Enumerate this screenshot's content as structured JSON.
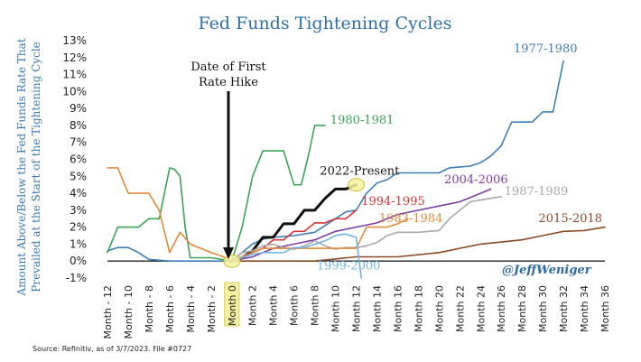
{
  "chart_data": {
    "type": "line",
    "title": "Fed Funds Tightening Cycles",
    "ylabel_lines": [
      "Amount Above/Below the Fed Funds Rate That",
      "Prevailed at the Start of the Tightening Cycle"
    ],
    "xlabel": "",
    "ylim": [
      -1,
      13
    ],
    "xlim": [
      -12,
      36
    ],
    "grid": false,
    "yticks": [
      {
        "value": -1,
        "label": "-1%"
      },
      {
        "value": 0,
        "label": "0%"
      },
      {
        "value": 1,
        "label": "1%"
      },
      {
        "value": 2,
        "label": "2%"
      },
      {
        "value": 3,
        "label": "3%"
      },
      {
        "value": 4,
        "label": "4%"
      },
      {
        "value": 5,
        "label": "5%"
      },
      {
        "value": 6,
        "label": "6%"
      },
      {
        "value": 7,
        "label": "7%"
      },
      {
        "value": 8,
        "label": "8%"
      },
      {
        "value": 9,
        "label": "9%"
      },
      {
        "value": 10,
        "label": "10%"
      },
      {
        "value": 11,
        "label": "11%"
      },
      {
        "value": 12,
        "label": "12%"
      },
      {
        "value": 13,
        "label": "13%"
      }
    ],
    "xticks": [
      {
        "value": -12,
        "label": "Month - 12"
      },
      {
        "value": -10,
        "label": "Month - 10"
      },
      {
        "value": -8,
        "label": "Month - 8"
      },
      {
        "value": -6,
        "label": "Month - 6"
      },
      {
        "value": -4,
        "label": "Month - 4"
      },
      {
        "value": -2,
        "label": "Month - 2"
      },
      {
        "value": 0,
        "label": "Month 0"
      },
      {
        "value": 2,
        "label": "Month 2"
      },
      {
        "value": 4,
        "label": "Month 4"
      },
      {
        "value": 6,
        "label": "Month 6"
      },
      {
        "value": 8,
        "label": "Month 8"
      },
      {
        "value": 10,
        "label": "Month 10"
      },
      {
        "value": 12,
        "label": "Month 12"
      },
      {
        "value": 14,
        "label": "Month 14"
      },
      {
        "value": 16,
        "label": "Month 16"
      },
      {
        "value": 18,
        "label": "Month 18"
      },
      {
        "value": 20,
        "label": "Month 20"
      },
      {
        "value": 22,
        "label": "Month 22"
      },
      {
        "value": 24,
        "label": "Month 24"
      },
      {
        "value": 26,
        "label": "Month 26"
      },
      {
        "value": 28,
        "label": "Month 28"
      },
      {
        "value": 30,
        "label": "Month 30"
      },
      {
        "value": 32,
        "label": "Month 32"
      },
      {
        "value": 34,
        "label": "Month 34"
      },
      {
        "value": 36,
        "label": "Month 36"
      }
    ],
    "highlight_tick": 0,
    "highlight_color": "#f7f2a0",
    "series": [
      {
        "name": "1977-1980",
        "color": "#3f7fb5",
        "width": 1.6,
        "points": [
          [
            -12,
            0.6
          ],
          [
            -11,
            0.8
          ],
          [
            -10,
            0.8
          ],
          [
            -9,
            0.5
          ],
          [
            -8,
            0.1
          ],
          [
            -6,
            0
          ],
          [
            0,
            0
          ],
          [
            1,
            0.5
          ],
          [
            2,
            1
          ],
          [
            3,
            1.3
          ],
          [
            4,
            1.4
          ],
          [
            6,
            1.5
          ],
          [
            8,
            1.7
          ],
          [
            10,
            2.5
          ],
          [
            11,
            2.9
          ],
          [
            12,
            3
          ],
          [
            13,
            4
          ],
          [
            14,
            4.6
          ],
          [
            15,
            4.8
          ],
          [
            16,
            5.2
          ],
          [
            18,
            5.2
          ],
          [
            20,
            5.2
          ],
          [
            21,
            5.5
          ],
          [
            23,
            5.6
          ],
          [
            24,
            5.8
          ],
          [
            25,
            6.2
          ],
          [
            26,
            6.8
          ],
          [
            27,
            8.2
          ],
          [
            28,
            8.2
          ],
          [
            29,
            8.2
          ],
          [
            30,
            8.8
          ],
          [
            31,
            8.8
          ],
          [
            32,
            11.8
          ]
        ],
        "label": "1977-1980",
        "label_color": "#3f7fb5",
        "label_x": 27.2,
        "label_y": 12.3
      },
      {
        "name": "1980-1981",
        "color": "#3aa357",
        "width": 1.6,
        "points": [
          [
            -12,
            0.5
          ],
          [
            -11,
            2
          ],
          [
            -10,
            2
          ],
          [
            -9,
            2
          ],
          [
            -8,
            2.5
          ],
          [
            -7,
            2.5
          ],
          [
            -6,
            5.5
          ],
          [
            -5.5,
            5.4
          ],
          [
            -5,
            5
          ],
          [
            -4.5,
            2
          ],
          [
            -4,
            0.2
          ],
          [
            -2,
            0.2
          ],
          [
            0,
            0
          ],
          [
            1,
            2
          ],
          [
            2,
            5
          ],
          [
            3,
            6.5
          ],
          [
            4,
            6.5
          ],
          [
            5,
            6.5
          ],
          [
            6,
            4.5
          ],
          [
            6.7,
            4.5
          ],
          [
            7.5,
            6.5
          ],
          [
            8,
            8
          ],
          [
            9,
            8
          ]
        ],
        "label": "1980-1981",
        "label_color": "#3aa357",
        "label_x": 9.5,
        "label_y": 8.1
      },
      {
        "name": "2022-Present",
        "color": "#111111",
        "width": 3,
        "points": [
          [
            0,
            0
          ],
          [
            1,
            0.2
          ],
          [
            2,
            0.6
          ],
          [
            3,
            1.4
          ],
          [
            4,
            1.4
          ],
          [
            5,
            2.2
          ],
          [
            6,
            2.2
          ],
          [
            7,
            3
          ],
          [
            8,
            3
          ],
          [
            9,
            3.7
          ],
          [
            10,
            4.25
          ],
          [
            11,
            4.25
          ],
          [
            12,
            4.5
          ]
        ],
        "label": "2022-Present",
        "label_color": "#111111",
        "label_x": 8.5,
        "label_y": 5.1,
        "end_marker": {
          "x": 12,
          "y": 4.5,
          "color": "#f7f2a0"
        }
      },
      {
        "name": "1994-1995",
        "color": "#d43436",
        "width": 1.6,
        "points": [
          [
            0,
            0
          ],
          [
            1,
            0.25
          ],
          [
            2,
            0.5
          ],
          [
            3,
            0.75
          ],
          [
            4,
            1.25
          ],
          [
            5,
            1.25
          ],
          [
            6,
            1.75
          ],
          [
            7,
            1.75
          ],
          [
            8,
            2.25
          ],
          [
            9,
            2.25
          ],
          [
            10,
            2.5
          ],
          [
            11,
            2.5
          ],
          [
            12,
            3
          ]
        ],
        "label": "1994-1995",
        "label_color": "#d43436",
        "label_x": 12.5,
        "label_y": 3.3
      },
      {
        "name": "2004-2006",
        "color": "#7c3fa0",
        "width": 1.6,
        "points": [
          [
            0,
            0
          ],
          [
            2,
            0.25
          ],
          [
            4,
            0.75
          ],
          [
            6,
            1
          ],
          [
            8,
            1.25
          ],
          [
            10,
            1.75
          ],
          [
            12,
            2
          ],
          [
            14,
            2.25
          ],
          [
            16,
            2.75
          ],
          [
            18,
            3
          ],
          [
            20,
            3.25
          ],
          [
            22,
            3.5
          ],
          [
            24,
            4
          ],
          [
            25,
            4.25
          ]
        ],
        "label": "2004-2006",
        "label_color": "#7c3fa0",
        "label_x": 20.5,
        "label_y": 4.6
      },
      {
        "name": "1987-1989",
        "color": "#a8a8a8",
        "width": 1.6,
        "points": [
          [
            0,
            0
          ],
          [
            1,
            0.5
          ],
          [
            2,
            0.6
          ],
          [
            3,
            0.9
          ],
          [
            4,
            1
          ],
          [
            5,
            0.8
          ],
          [
            6,
            0.7
          ],
          [
            7,
            0.9
          ],
          [
            8,
            1.2
          ],
          [
            9,
            0.9
          ],
          [
            10,
            0.7
          ],
          [
            11,
            0.8
          ],
          [
            12,
            0.8
          ],
          [
            13,
            0.9
          ],
          [
            14,
            1.1
          ],
          [
            15,
            1.5
          ],
          [
            16,
            1.7
          ],
          [
            18,
            1.7
          ],
          [
            20,
            1.8
          ],
          [
            21,
            2.5
          ],
          [
            22,
            3
          ],
          [
            23,
            3.5
          ],
          [
            24,
            3.6
          ],
          [
            26,
            3.8
          ]
        ],
        "label": "1987-1989",
        "label_color": "#a8a8a8",
        "label_x": 26.3,
        "label_y": 3.9
      },
      {
        "name": "1983-1984",
        "color": "#e08a3c",
        "width": 1.6,
        "points": [
          [
            -12,
            5.5
          ],
          [
            -11,
            5.5
          ],
          [
            -10,
            4
          ],
          [
            -9,
            4
          ],
          [
            -8,
            4
          ],
          [
            -7,
            3
          ],
          [
            -6,
            0.5
          ],
          [
            -5,
            1.7
          ],
          [
            -4,
            1
          ],
          [
            -2,
            0.5
          ],
          [
            -1,
            0.3
          ],
          [
            0,
            0
          ],
          [
            1,
            0.25
          ],
          [
            2,
            0.5
          ],
          [
            3,
            0.75
          ],
          [
            4,
            0.75
          ],
          [
            6,
            0.75
          ],
          [
            8,
            0.75
          ],
          [
            10,
            0.75
          ],
          [
            12,
            0.75
          ],
          [
            13,
            2
          ],
          [
            14,
            2
          ],
          [
            15,
            2
          ],
          [
            16,
            2.2
          ],
          [
            17,
            2.5
          ]
        ],
        "label": "1983-1984",
        "label_color": "#e08a3c",
        "label_x": 14.2,
        "label_y": 2.3
      },
      {
        "name": "2015-2018",
        "color": "#8a4a26",
        "width": 1.6,
        "points": [
          [
            0,
            0
          ],
          [
            4,
            0
          ],
          [
            8,
            0
          ],
          [
            12,
            0.25
          ],
          [
            16,
            0.25
          ],
          [
            20,
            0.5
          ],
          [
            24,
            1
          ],
          [
            28,
            1.25
          ],
          [
            30,
            1.5
          ],
          [
            32,
            1.75
          ],
          [
            34,
            1.8
          ],
          [
            36,
            2
          ]
        ],
        "label": "2015-2018",
        "label_color": "#8a4a26",
        "label_x": 29.6,
        "label_y": 2.3
      },
      {
        "name": "1999-2000",
        "color": "#72b4de",
        "width": 1.6,
        "points": [
          [
            0,
            0
          ],
          [
            1,
            0.2
          ],
          [
            2,
            0.4
          ],
          [
            3,
            0.5
          ],
          [
            4,
            0.5
          ],
          [
            5,
            0.5
          ],
          [
            6,
            0.8
          ],
          [
            7,
            0.8
          ],
          [
            8,
            1
          ],
          [
            9,
            1.2
          ],
          [
            10,
            1.5
          ],
          [
            11,
            1.6
          ],
          [
            12,
            1.4
          ],
          [
            12.5,
            -1
          ]
        ],
        "label": "1999-2000",
        "label_color": "#72b4de",
        "label_x": 8.2,
        "label_y": -0.5
      }
    ]
  },
  "annotation": {
    "first_hike_line1": "Date of First",
    "first_hike_line2": "Rate Hike"
  },
  "handle": "@JeffWeniger",
  "source": "Source: Refinitiv, as of 3/7/2023. File #0727"
}
